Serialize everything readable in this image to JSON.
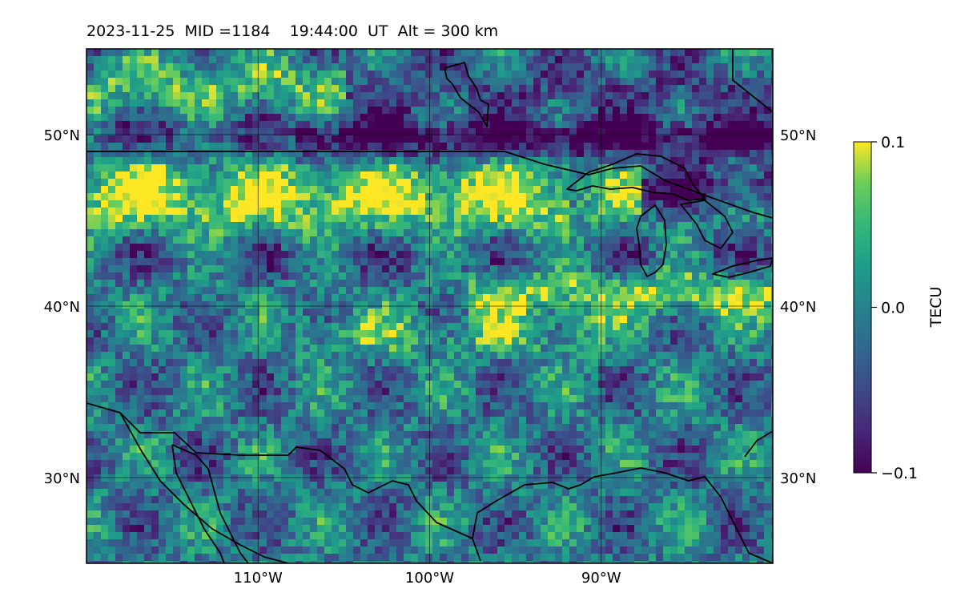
{
  "title": "2023-11-25  MID =1184    19:44:00  UT  Alt = 300 km",
  "map": {
    "lon_range": [
      -120,
      -80
    ],
    "lat_range": [
      25,
      55
    ],
    "lon_ticks": [
      {
        "value": -110,
        "label": "110°W"
      },
      {
        "value": -100,
        "label": "100°W"
      },
      {
        "value": -90,
        "label": "90°W"
      }
    ],
    "lat_ticks": [
      {
        "value": 50,
        "label": "50°N"
      },
      {
        "value": 40,
        "label": "40°N"
      },
      {
        "value": 30,
        "label": "30°N"
      }
    ],
    "gridlines": true,
    "frame_color": "#000000"
  },
  "colorbar": {
    "label": "TECU",
    "min": -0.1,
    "max": 0.1,
    "colormap": "viridis",
    "ticks": [
      {
        "value": 0.1,
        "label": "0.1"
      },
      {
        "value": 0.0,
        "label": "0.0"
      },
      {
        "value": -0.1,
        "label": "−0.1"
      }
    ]
  }
}
